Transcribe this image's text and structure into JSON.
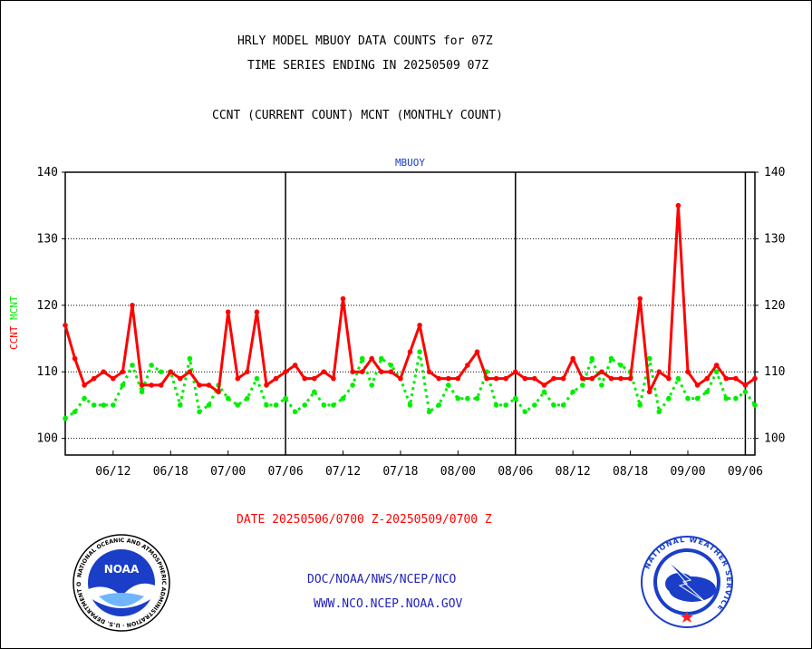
{
  "chart_data": {
    "type": "line",
    "title_lines": [
      "HRLY MODEL MBUOY DATA COUNTS for 07Z",
      "TIME SERIES ENDING IN 20250509 07Z"
    ],
    "subtitle": "CCNT (CURRENT COUNT) MCNT (MONTHLY COUNT)",
    "plot_label": "MBUOY",
    "ylabel": "CCNT MCNT",
    "ylim": [
      97.5,
      140
    ],
    "y_ticks": [
      100,
      110,
      120,
      130,
      140
    ],
    "x_tick_labels": [
      "06/12",
      "06/18",
      "07/00",
      "07/06",
      "07/12",
      "07/18",
      "08/00",
      "08/06",
      "08/12",
      "08/18",
      "09/00",
      "09/06"
    ],
    "x_tick_hours": [
      5,
      11,
      17,
      23,
      29,
      35,
      41,
      47,
      53,
      59,
      65,
      71
    ],
    "day_boundary_hours": [
      23,
      47,
      71
    ],
    "grid": true,
    "xlabel": "DATE 20250506/0700 Z-20250509/0700 Z",
    "series": [
      {
        "name": "CCNT",
        "color": "#ff0000",
        "style": "solid",
        "values": [
          117,
          112,
          108,
          109,
          110,
          109,
          110,
          120,
          108,
          108,
          108,
          110,
          109,
          110,
          108,
          108,
          107,
          119,
          109,
          110,
          119,
          108,
          109,
          110,
          111,
          109,
          109,
          110,
          109,
          121,
          110,
          110,
          112,
          110,
          110,
          109,
          113,
          117,
          110,
          109,
          109,
          109,
          111,
          113,
          109,
          109,
          109,
          110,
          109,
          109,
          108,
          109,
          109,
          112,
          109,
          109,
          110,
          109,
          109,
          109,
          121,
          107,
          110,
          109,
          135,
          110,
          108,
          109,
          111,
          109,
          109,
          108,
          109
        ]
      },
      {
        "name": "MCNT",
        "color": "#00ee00",
        "style": "dotted",
        "values": [
          103,
          104,
          106,
          105,
          105,
          105,
          108,
          111,
          107,
          111,
          110,
          110,
          105,
          112,
          104,
          105,
          108,
          106,
          105,
          106,
          109,
          105,
          105,
          106,
          104,
          105,
          107,
          105,
          105,
          106,
          108,
          112,
          108,
          112,
          111,
          109,
          105,
          113,
          104,
          105,
          108,
          106,
          106,
          106,
          110,
          105,
          105,
          106,
          104,
          105,
          107,
          105,
          105,
          107,
          108,
          112,
          108,
          112,
          111,
          110,
          105,
          112,
          104,
          106,
          109,
          106,
          106,
          107,
          110,
          106,
          106,
          107,
          105
        ]
      }
    ]
  },
  "footer": {
    "link1": "DOC/NOAA/NWS/NCEP/NCO",
    "link2": "WWW.NCO.NCEP.NOAA.GOV"
  },
  "logos": {
    "noaa": {
      "center_text": "NOAA",
      "ring_text": "NATIONAL OCEANIC AND ATMOSPHERIC ADMINISTRATION · U.S. DEPARTMENT OF COMMERCE ·"
    },
    "nws": {
      "ring_text": "NATIONAL WEATHER SERVICE"
    }
  }
}
